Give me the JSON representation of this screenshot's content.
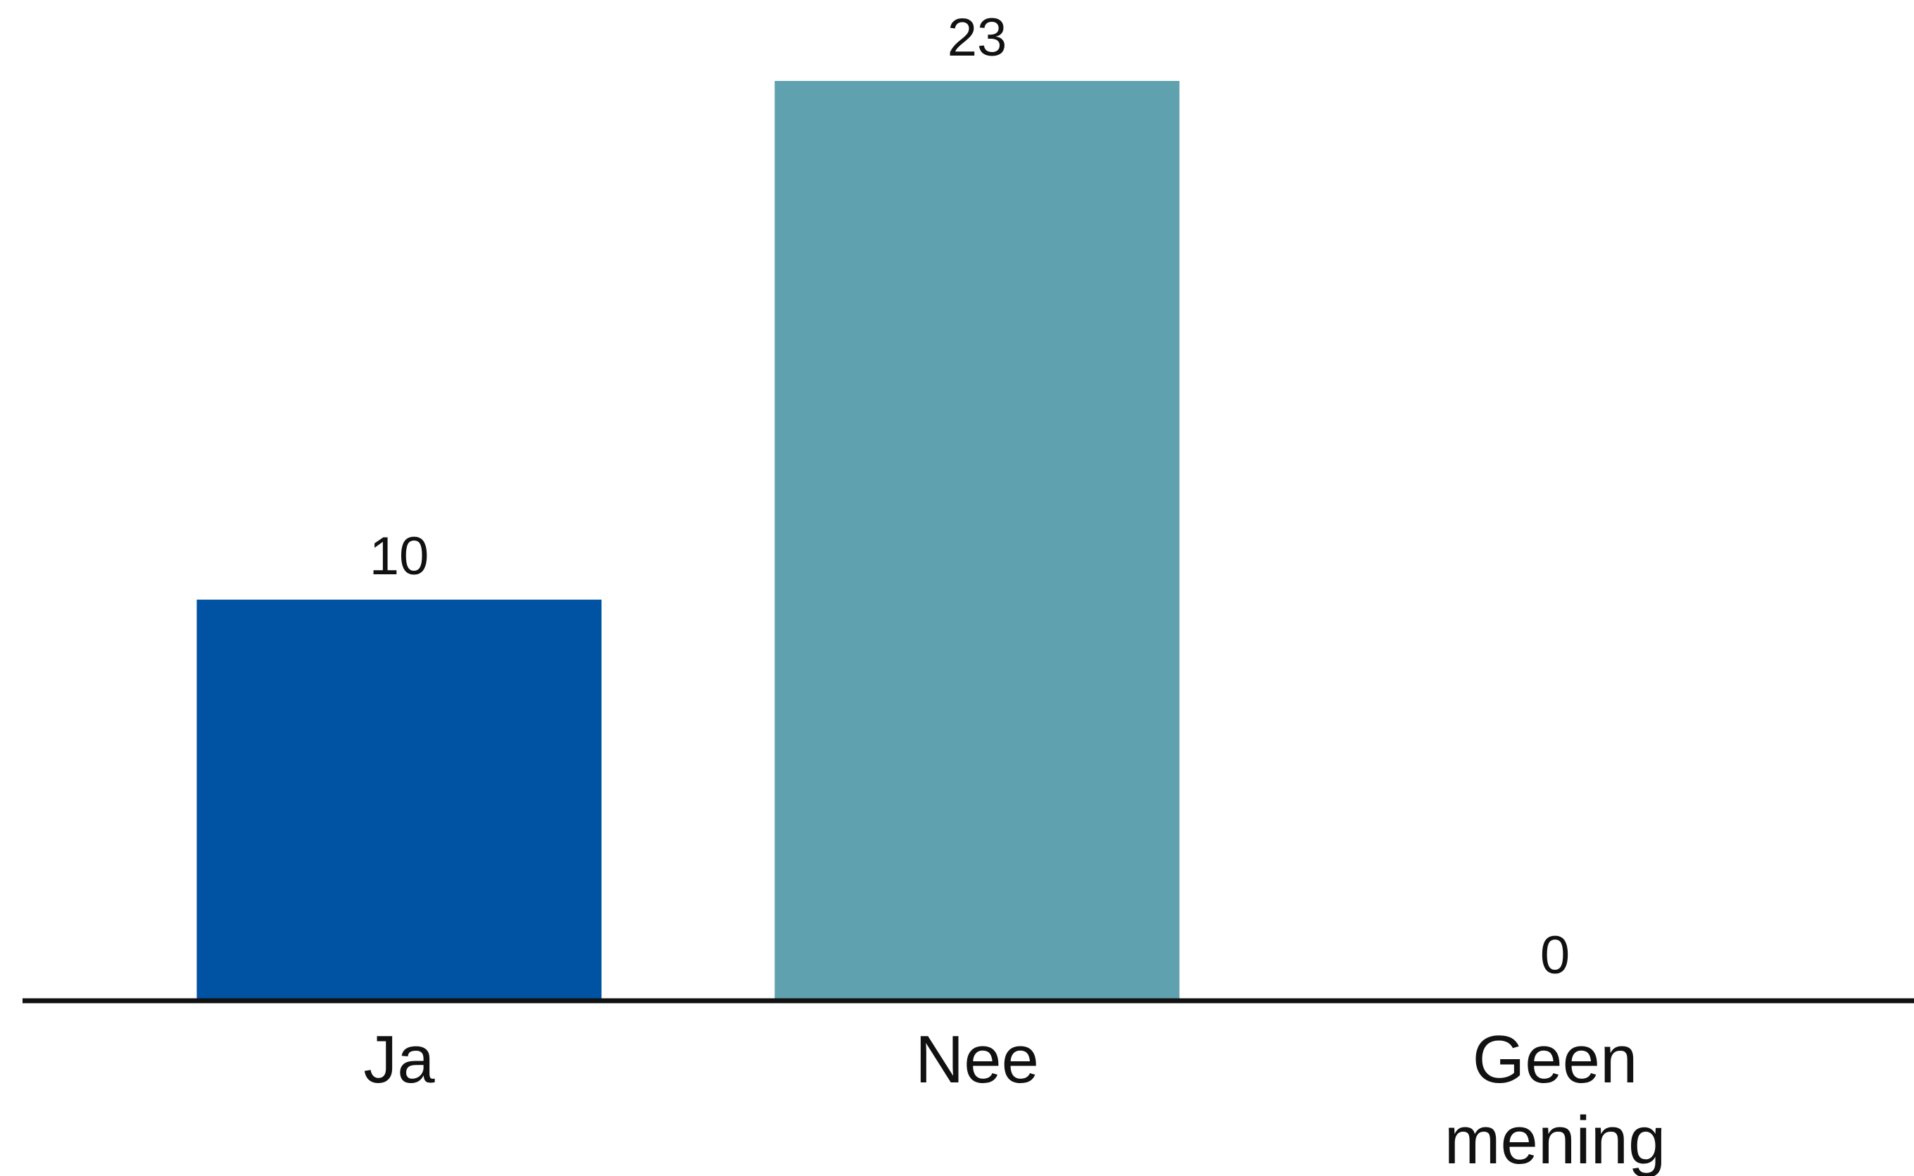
{
  "chart_data": {
    "type": "bar",
    "title": "",
    "xlabel": "",
    "ylabel": "",
    "categories": [
      "Ja",
      "Nee",
      "Geen mening"
    ],
    "category_label_lines": [
      [
        "Ja"
      ],
      [
        "Nee"
      ],
      [
        "Geen",
        "mening"
      ]
    ],
    "values": [
      10,
      23,
      0
    ],
    "value_labels": [
      "10",
      "23",
      "0"
    ],
    "colors": [
      "#0052A3",
      "#5FA1AE",
      "#5FA1AE"
    ],
    "ylim": [
      0,
      23
    ],
    "grid": false,
    "legend": "none",
    "axis_color": "#111111"
  }
}
